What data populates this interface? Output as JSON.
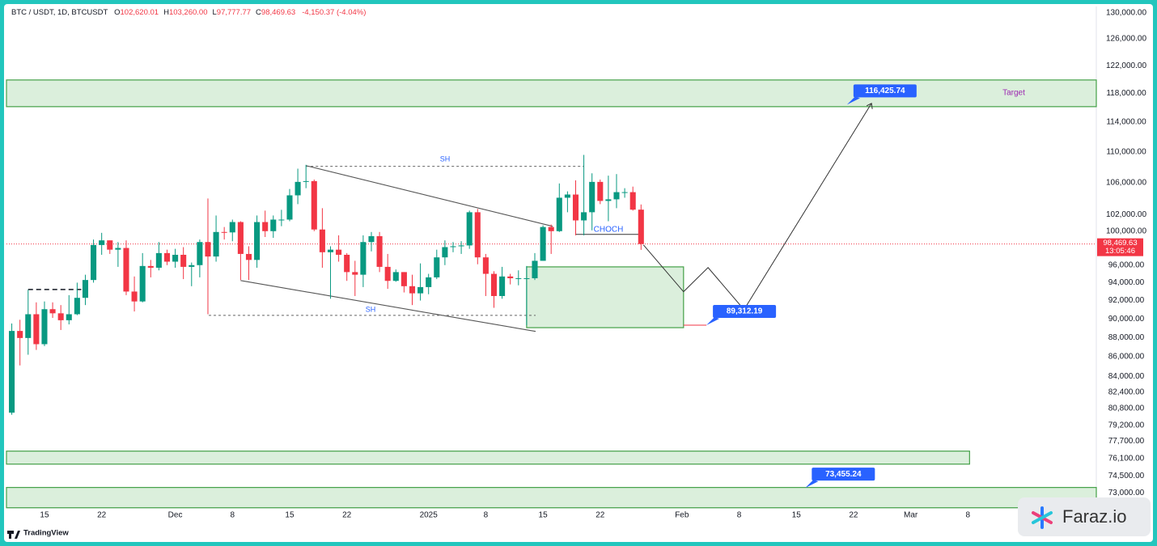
{
  "chart_data": {
    "type": "candlestick",
    "header": {
      "symbol": "BTC / USDT, 1D, BTCUSDT",
      "ohlc": [
        {
          "key": "O",
          "value": "102,620.01"
        },
        {
          "key": "H",
          "value": "103,260.00"
        },
        {
          "key": "L",
          "value": "97,777.77"
        },
        {
          "key": "C",
          "value": "98,469.63"
        }
      ],
      "change": "-4,150.37 (-4.04%)"
    },
    "log_scale": true,
    "grid": false,
    "up_color": "#089981",
    "down_color": "#f23645",
    "ylim": [
      71700,
      131000
    ],
    "yticks": [
      {
        "value": 130000,
        "label": "130,000.00"
      },
      {
        "value": 126000,
        "label": "126,000.00"
      },
      {
        "value": 122000,
        "label": "122,000.00"
      },
      {
        "value": 118000,
        "label": "118,000.00"
      },
      {
        "value": 114000,
        "label": "114,000.00"
      },
      {
        "value": 110000,
        "label": "110,000.00"
      },
      {
        "value": 106000,
        "label": "106,000.00"
      },
      {
        "value": 102000,
        "label": "102,000.00"
      },
      {
        "value": 100000,
        "label": "100,000.00"
      },
      {
        "value": 96000,
        "label": "96,000.00"
      },
      {
        "value": 94000,
        "label": "94,000.00"
      },
      {
        "value": 92000,
        "label": "92,000.00"
      },
      {
        "value": 90000,
        "label": "90,000.00"
      },
      {
        "value": 88000,
        "label": "88,000.00"
      },
      {
        "value": 86000,
        "label": "86,000.00"
      },
      {
        "value": 84000,
        "label": "84,000.00"
      },
      {
        "value": 82400,
        "label": "82,400.00"
      },
      {
        "value": 80800,
        "label": "80,800.00"
      },
      {
        "value": 79200,
        "label": "79,200.00"
      },
      {
        "value": 77700,
        "label": "77,700.00"
      },
      {
        "value": 76100,
        "label": "76,100.00"
      },
      {
        "value": 74500,
        "label": "74,500.00"
      },
      {
        "value": 73000,
        "label": "73,000.00"
      }
    ],
    "xlim": [
      -4.65,
      128.71
    ],
    "xticks": [
      {
        "value": 0,
        "label": "15"
      },
      {
        "value": 7,
        "label": "22"
      },
      {
        "value": 16,
        "label": "Dec"
      },
      {
        "value": 23,
        "label": "8"
      },
      {
        "value": 30,
        "label": "15"
      },
      {
        "value": 37,
        "label": "22"
      },
      {
        "value": 47,
        "label": "2025"
      },
      {
        "value": 54,
        "label": "8"
      },
      {
        "value": 61,
        "label": "15"
      },
      {
        "value": 68,
        "label": "22"
      },
      {
        "value": 78,
        "label": "Feb"
      },
      {
        "value": 85,
        "label": "8"
      },
      {
        "value": 92,
        "label": "15"
      },
      {
        "value": 99,
        "label": "22"
      },
      {
        "value": 106,
        "label": "Mar"
      },
      {
        "value": 113,
        "label": "8"
      }
    ],
    "x": [
      -4,
      -3,
      -2,
      -1,
      0,
      1,
      2,
      3,
      4,
      5,
      6,
      7,
      8,
      9,
      10,
      11,
      12,
      13,
      14,
      15,
      16,
      17,
      18,
      19,
      20,
      21,
      22,
      23,
      24,
      25,
      26,
      27,
      28,
      29,
      30,
      31,
      32,
      33,
      34,
      35,
      36,
      37,
      38,
      39,
      40,
      41,
      42,
      43,
      44,
      45,
      46,
      47,
      48,
      49,
      50,
      51,
      52,
      53,
      54,
      55,
      56,
      57,
      58,
      59,
      60,
      61,
      62,
      63,
      64,
      65,
      66,
      67,
      68,
      69,
      70,
      71,
      72,
      73
    ],
    "open": [
      80400,
      88700,
      87950,
      90500,
      87300,
      91050,
      90600,
      89850,
      90500,
      92300,
      94300,
      98350,
      98900,
      97800,
      98000,
      93000,
      91900,
      95900,
      95700,
      97400,
      96400,
      97200,
      95800,
      96000,
      98700,
      97000,
      99900,
      99850,
      101100,
      97300,
      96600,
      101100,
      100000,
      101400,
      101400,
      104400,
      106100,
      106200,
      100200,
      97500,
      97800,
      97200,
      95200,
      94900,
      98700,
      99400,
      95800,
      94200,
      95200,
      93600,
      92800,
      93500,
      94600,
      96900,
      98100,
      98200,
      98300,
      102300,
      96900,
      95000,
      92500,
      94700,
      94500,
      94500,
      94500,
      96500,
      100500,
      100000,
      104100,
      104500,
      101300,
      102300,
      106100,
      103700,
      103900,
      104800,
      104800,
      102620.01
    ],
    "high": [
      89500,
      89900,
      93200,
      91800,
      91900,
      91800,
      91500,
      92600,
      94000,
      94900,
      99000,
      99800,
      98900,
      98700,
      98900,
      94700,
      97400,
      96600,
      98700,
      97800,
      97900,
      98100,
      96300,
      99000,
      104000,
      101900,
      100500,
      101400,
      101200,
      98200,
      101900,
      102500,
      101900,
      102600,
      105200,
      107800,
      108300,
      106400,
      102800,
      98200,
      99500,
      97400,
      96500,
      99500,
      99900,
      99900,
      97300,
      95500,
      95200,
      94900,
      96200,
      95000,
      97800,
      98900,
      98700,
      98800,
      102500,
      102700,
      97300,
      95300,
      95800,
      95000,
      95400,
      95900,
      97400,
      100700,
      100800,
      105900,
      104900,
      106300,
      109600,
      107200,
      106400,
      106900,
      107100,
      105300,
      105500,
      103260
    ],
    "low": [
      80200,
      85100,
      86200,
      86700,
      87100,
      90100,
      88800,
      89400,
      90400,
      91500,
      94000,
      97200,
      97300,
      95800,
      92600,
      90800,
      91800,
      94600,
      95400,
      96000,
      95700,
      94400,
      93600,
      94600,
      90500,
      96400,
      99000,
      98800,
      94300,
      94300,
      95700,
      99300,
      99200,
      100600,
      101200,
      103300,
      105300,
      100000,
      95700,
      92200,
      96400,
      94200,
      92500,
      93500,
      97600,
      95200,
      93300,
      94100,
      92900,
      91500,
      92000,
      92700,
      94400,
      96000,
      97500,
      97300,
      97900,
      96100,
      92500,
      91200,
      92200,
      93800,
      93700,
      89300,
      94300,
      96500,
      97300,
      99900,
      102300,
      99500,
      99500,
      100100,
      103300,
      101200,
      102800,
      104100,
      102500,
      97777.77
    ],
    "close": [
      88700,
      87950,
      90500,
      87300,
      91050,
      90600,
      89850,
      90500,
      92300,
      94300,
      98350,
      98900,
      97800,
      98000,
      93000,
      91900,
      95900,
      95700,
      97400,
      96400,
      97200,
      95800,
      96000,
      98700,
      97000,
      99900,
      99850,
      101100,
      97300,
      96600,
      101100,
      100000,
      101400,
      101400,
      104400,
      106100,
      106200,
      100200,
      97500,
      97800,
      97200,
      95200,
      94900,
      98700,
      99400,
      95800,
      94200,
      95200,
      93600,
      92800,
      93500,
      94600,
      96900,
      98100,
      98200,
      98300,
      102300,
      96900,
      95000,
      92500,
      94700,
      94500,
      94500,
      94500,
      96500,
      100500,
      100000,
      104100,
      104500,
      101300,
      102300,
      106100,
      103700,
      103900,
      104800,
      104800,
      102620.01,
      98469.63
    ],
    "last_price_label": "98,469.63",
    "countdown": "13:05:46",
    "zones": [
      {
        "low": 116140,
        "high": 119925
      },
      {
        "low": 89050,
        "high": 95800,
        "x0": 59.0,
        "x1": 78.2
      },
      {
        "low": 75580,
        "high": 76770,
        "x1": 113.2
      },
      {
        "low": 71720,
        "high": 73490
      }
    ],
    "trend_lines": [
      {
        "x": [
          32.0,
          62.2
        ],
        "y": [
          108190,
          100580
        ]
      },
      {
        "x": [
          24.0,
          60.1
        ],
        "y": [
          94240,
          88650
        ]
      }
    ],
    "dashed_lines": [
      {
        "x": [
          32.0,
          66.0
        ],
        "y": [
          108100,
          108100
        ]
      },
      {
        "x": [
          20.1,
          60.1
        ],
        "y": [
          90380,
          90380
        ]
      },
      {
        "x": [
          -2.0,
          4.5
        ],
        "y": [
          93230,
          93230
        ]
      }
    ],
    "choch_line": {
      "x": [
        65.0,
        65.0,
        72.8
      ],
      "y": [
        101570,
        99610,
        99610
      ]
    },
    "projection": {
      "x": [
        73.3,
        78.2,
        81.2,
        85.6,
        101.2
      ],
      "y": [
        98360,
        92980,
        95720,
        91000,
        116600
      ]
    },
    "price_labels": [
      {
        "value": 116425.74,
        "label": "116,425.74",
        "x": 98.2
      },
      {
        "value": 89312.19,
        "label": "89,312.19",
        "x": 81.0
      },
      {
        "value": 73455.24,
        "label": "73,455.24",
        "x": 93.1
      }
    ],
    "texts": {
      "target": "Target",
      "sh_top": "SH",
      "sh_bottom": "SH",
      "choch": "CHOCH"
    },
    "footer": {
      "logo": "TradingView",
      "watermark": "Faraz.io"
    }
  }
}
